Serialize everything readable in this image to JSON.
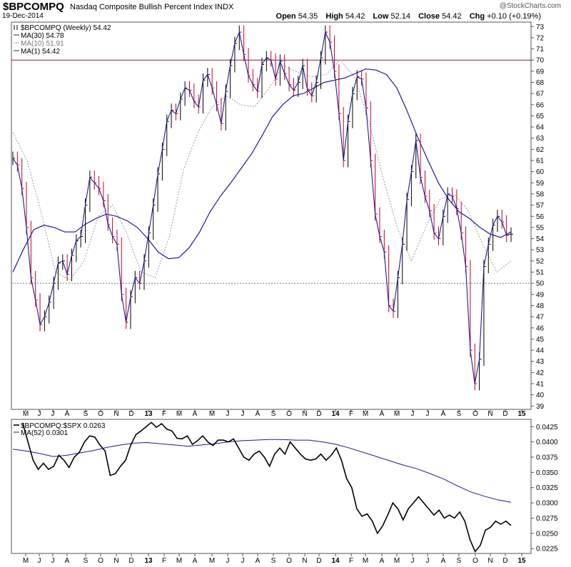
{
  "header": {
    "symbol": "$BPCOMPQ",
    "subtitle": "Nasdaq Composite Bullish Percent Index  INDX",
    "brand": "@StockCharts.com",
    "date": "19-Dec-2014",
    "ohlc": [
      {
        "label": "Open",
        "value": "54.35"
      },
      {
        "label": "High",
        "value": "54.42"
      },
      {
        "label": "Low",
        "value": "52.14"
      },
      {
        "label": "Close",
        "value": "54.42"
      },
      {
        "label": "Chg",
        "value": "+0.10 (+0.19%)"
      }
    ]
  },
  "colors": {
    "price_up": "#000000",
    "price_down": "#c0002a",
    "ma30": "#1c1c8c",
    "ma10": "#9a9a9a",
    "ma1": "#1c1c8c",
    "ratio_line": "#000000",
    "ratio_ma": "#1c1c8c",
    "hline": "#8b1a3a"
  },
  "chart_data": [
    {
      "type": "line",
      "legend": [
        {
          "text": "$BPCOMPQ (Weekly) 54.42",
          "style": "bars"
        },
        {
          "text": "MA(30) 54.78",
          "style": "solid"
        },
        {
          "text": "MA(10) 51.91",
          "style": "dotted"
        },
        {
          "text": "MA(1) 54.42",
          "style": "solid"
        }
      ],
      "ylim": [
        38.7,
        73.4
      ],
      "y_ticks": [
        "39",
        "40",
        "41",
        "42",
        "43",
        "44",
        "45",
        "46",
        "47",
        "48",
        "49",
        "50",
        "51",
        "52",
        "53",
        "54",
        "55",
        "56",
        "57",
        "58",
        "59",
        "60",
        "61",
        "62",
        "63",
        "64",
        "65",
        "66",
        "67",
        "68",
        "69",
        "70",
        "71",
        "72",
        "73"
      ],
      "x_labels": [
        "M",
        "J",
        "J",
        "A",
        "S",
        "O",
        "N",
        "D",
        "13",
        "F",
        "M",
        "A",
        "M",
        "J",
        "J",
        "A",
        "S",
        "O",
        "N",
        "D",
        "14",
        "F",
        "M",
        "A",
        "M",
        "J",
        "J",
        "A",
        "S",
        "O",
        "N",
        "D",
        "15"
      ],
      "h_lines": [
        {
          "value": 70,
          "style": "solid"
        },
        {
          "value": 50,
          "style": "dotted"
        }
      ],
      "series": [
        {
          "name": "$BPCOMPQ",
          "values": [
            61.2,
            60.6,
            58.5,
            55.0,
            50.5,
            48.5,
            46.3,
            47.0,
            48.3,
            50.0,
            51.8,
            52.0,
            50.8,
            52.5,
            53.8,
            54.2,
            57.0,
            59.5,
            59.0,
            58.5,
            57.4,
            55.3,
            54.2,
            53.5,
            49.0,
            46.5,
            48.8,
            50.5,
            50.0,
            52.0,
            54.5,
            57.0,
            59.8,
            62.0,
            64.5,
            65.5,
            65.2,
            66.5,
            67.5,
            67.3,
            66.3,
            65.8,
            68.2,
            68.7,
            67.5,
            66.0,
            64.3,
            67.2,
            69.5,
            71.5,
            72.5,
            70.5,
            68.6,
            67.8,
            67.2,
            69.6,
            70.2,
            70.0,
            68.3,
            69.9,
            68.8,
            67.8,
            67.3,
            68.0,
            69.5,
            67.4,
            66.8,
            68.0,
            70.2,
            72.5,
            71.6,
            69.0,
            65.2,
            61.0,
            64.5,
            67.0,
            68.5,
            68.3,
            65.7,
            61.0,
            56.2,
            54.2,
            52.8,
            48.0,
            47.5,
            50.5,
            53.5,
            57.5,
            60.0,
            62.8,
            59.5,
            57.8,
            56.5,
            54.5,
            54.0,
            56.0,
            58.0,
            57.8,
            56.7,
            54.5,
            51.5,
            44.0,
            41.0,
            43.2,
            51.5,
            53.5,
            55.2,
            56.0,
            55.5,
            54.3,
            54.4
          ]
        },
        {
          "name": "MA(30)",
          "values": [
            51.0,
            53.0,
            54.8,
            55.2,
            55.0,
            54.6,
            54.6,
            55.3,
            55.8,
            56.2,
            56.0,
            55.6,
            55.0,
            54.0,
            52.8,
            52.2,
            52.3,
            53.2,
            54.6,
            56.4,
            57.8,
            59.0,
            60.3,
            61.6,
            63.2,
            64.9,
            66.0,
            66.8,
            67.0,
            67.5,
            68.0,
            68.2,
            68.4,
            68.8,
            69.2,
            69.1,
            68.7,
            67.5,
            65.4,
            63.1,
            61.0,
            59.0,
            57.5,
            56.4,
            55.8,
            55.0,
            54.4,
            54.1,
            54.6
          ]
        },
        {
          "name": "MA(10)",
          "values": [
            63.5,
            61.0,
            56.3,
            51.0,
            50.3,
            52.0,
            56.0,
            57.0,
            54.5,
            51.0,
            50.5,
            54.2,
            60.2,
            63.5,
            65.8,
            66.8,
            66.0,
            65.8,
            67.5,
            69.5,
            68.9,
            68.5,
            68.7,
            70.0,
            68.5,
            64.6,
            59.5,
            55.0,
            52.0,
            55.0,
            57.5,
            58.0,
            56.5,
            53.5,
            51.0,
            52.0
          ]
        }
      ],
      "ma10_last": 51.91,
      "ma30_last": 54.78,
      "last_close": 54.42
    },
    {
      "type": "line",
      "legend": [
        {
          "text": "$BPCOMPQ:$SPX 0.0263",
          "style": "solid"
        },
        {
          "text": "MA(52) 0.0301",
          "style": "solid"
        }
      ],
      "ylim": [
        0.0217,
        0.0437
      ],
      "y_ticks": [
        "0.0225",
        "0.0250",
        "0.0275",
        "0.0300",
        "0.0325",
        "0.0350",
        "0.0375",
        "0.0400",
        "0.0425"
      ],
      "x_labels": [
        "M",
        "J",
        "J",
        "A",
        "S",
        "O",
        "N",
        "D",
        "13",
        "F",
        "M",
        "A",
        "M",
        "J",
        "J",
        "A",
        "S",
        "O",
        "N",
        "D",
        "14",
        "F",
        "M",
        "A",
        "M",
        "J",
        "J",
        "A",
        "S",
        "O",
        "N",
        "D",
        "15"
      ],
      "series": [
        {
          "name": "$BPCOMPQ:$SPX",
          "values": [
            0.043,
            0.04,
            0.037,
            0.0355,
            0.0365,
            0.0355,
            0.036,
            0.0378,
            0.037,
            0.0358,
            0.0375,
            0.0383,
            0.04,
            0.041,
            0.0408,
            0.0395,
            0.0385,
            0.0345,
            0.0348,
            0.036,
            0.037,
            0.0395,
            0.0412,
            0.0418,
            0.0425,
            0.0432,
            0.0424,
            0.043,
            0.0421,
            0.0418,
            0.0406,
            0.0405,
            0.041,
            0.0396,
            0.0402,
            0.041,
            0.04,
            0.0394,
            0.0403,
            0.0403,
            0.04,
            0.0405,
            0.039,
            0.0375,
            0.037,
            0.038,
            0.0385,
            0.0375,
            0.036,
            0.038,
            0.039,
            0.038,
            0.04,
            0.039,
            0.038,
            0.0372,
            0.037,
            0.0372,
            0.038,
            0.037,
            0.0378,
            0.039,
            0.037,
            0.034,
            0.0325,
            0.029,
            0.0278,
            0.0282,
            0.027,
            0.025,
            0.0262,
            0.028,
            0.03,
            0.029,
            0.0272,
            0.029,
            0.03,
            0.031,
            0.03,
            0.029,
            0.028,
            0.0288,
            0.0275,
            0.028,
            0.0275,
            0.0285,
            0.027,
            0.024,
            0.022,
            0.023,
            0.0255,
            0.026,
            0.027,
            0.0265,
            0.027,
            0.0263
          ]
        },
        {
          "name": "MA(52)",
          "values": [
            0.0388,
            0.0385,
            0.0381,
            0.0376,
            0.0378,
            0.0382,
            0.0386,
            0.0391,
            0.0395,
            0.0398,
            0.0399,
            0.0397,
            0.0395,
            0.0393,
            0.0395,
            0.0397,
            0.04,
            0.0402,
            0.0403,
            0.0404,
            0.0404,
            0.0403,
            0.0403,
            0.04,
            0.0396,
            0.039,
            0.0383,
            0.0376,
            0.0369,
            0.0362,
            0.0356,
            0.0348,
            0.0339,
            0.0328,
            0.0318,
            0.0311,
            0.0305,
            0.0301
          ]
        }
      ]
    }
  ]
}
